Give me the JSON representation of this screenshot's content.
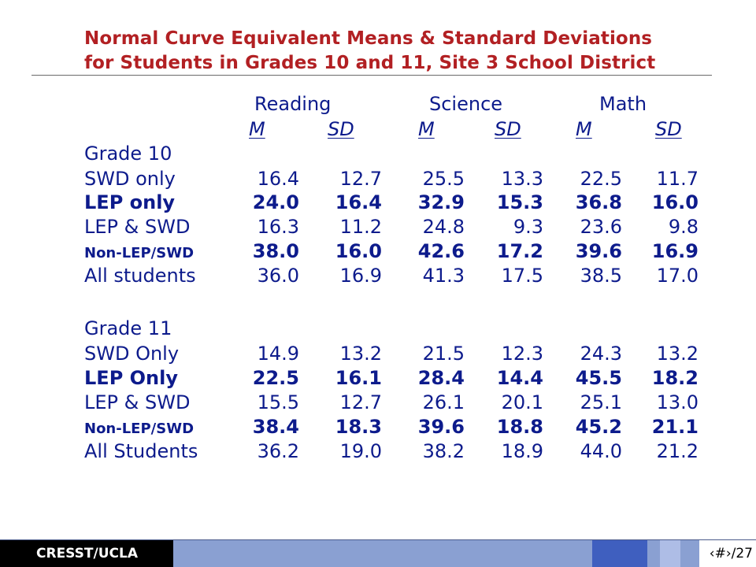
{
  "title": {
    "line1": "Normal Curve Equivalent Means & Standard Deviations",
    "line2": "for Students in Grades 10 and 11, Site 3 School District"
  },
  "subjects": [
    "Reading",
    "Science",
    "Math"
  ],
  "stat_headers": [
    "M",
    "SD"
  ],
  "grades": [
    {
      "label": "Grade 10",
      "rows": [
        {
          "label": "SWD only",
          "bold": false,
          "values": [
            "16.4",
            "12.7",
            "25.5",
            "13.3",
            "22.5",
            "11.7"
          ]
        },
        {
          "label": "LEP only",
          "bold": true,
          "values": [
            "24.0",
            "16.4",
            "32.9",
            "15.3",
            "36.8",
            "16.0"
          ]
        },
        {
          "label": "LEP & SWD",
          "bold": false,
          "values": [
            "16.3",
            "11.2",
            "24.8",
            "9.3",
            "23.6",
            "9.8"
          ]
        },
        {
          "label": "Non-LEP/SWD",
          "bold": true,
          "values": [
            "38.0",
            "16.0",
            "42.6",
            "17.2",
            "39.6",
            "16.9"
          ]
        },
        {
          "label": "All students",
          "bold": false,
          "values": [
            "36.0",
            "16.9",
            "41.3",
            "17.5",
            "38.5",
            "17.0"
          ]
        }
      ]
    },
    {
      "label": "Grade 11",
      "rows": [
        {
          "label": "SWD Only",
          "bold": false,
          "values": [
            "14.9",
            "13.2",
            "21.5",
            "12.3",
            "24.3",
            "13.2"
          ]
        },
        {
          "label": "LEP Only",
          "bold": true,
          "values": [
            "22.5",
            "16.1",
            "28.4",
            "14.4",
            "45.5",
            "18.2"
          ]
        },
        {
          "label": "LEP & SWD",
          "bold": false,
          "values": [
            "15.5",
            "12.7",
            "26.1",
            "20.1",
            "25.1",
            "13.0"
          ]
        },
        {
          "label": "Non-LEP/SWD",
          "bold": true,
          "values": [
            "38.4",
            "18.3",
            "39.6",
            "18.8",
            "45.2",
            "21.1"
          ]
        },
        {
          "label": "All Students",
          "bold": false,
          "values": [
            "36.2",
            "19.0",
            "38.2",
            "18.9",
            "44.0",
            "21.2"
          ]
        }
      ]
    }
  ],
  "footer": {
    "label": "CRESST/UCLA",
    "page": "‹#›/27"
  },
  "colors": {
    "title": "#b22023",
    "body_text": "#0d1b8c",
    "footer_bar": "#8aa0d2",
    "footer_block_dark": "#3f5fbf",
    "footer_block_light": "#aebde6"
  }
}
